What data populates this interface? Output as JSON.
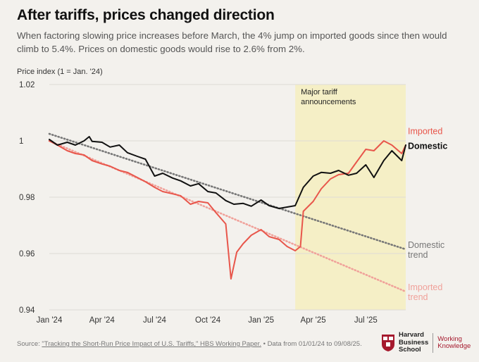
{
  "header": {
    "title": "After tariffs, prices changed direction",
    "subtitle": "When factoring slowing price increases before March, the 4% jump on imported goods since then would climb to 5.4%. Prices on domestic goods would rise to 2.6% from 2%."
  },
  "footer": {
    "source_prefix": "Source:",
    "source_link": "\"Tracking the Short-Run Price Impact of U.S. Tariffs,\" HBS Working Paper.",
    "source_suffix": "• Data from 01/01/24 to 09/08/25."
  },
  "logo": {
    "line1": "Harvard",
    "line2": "Business",
    "line3": "School",
    "wk1": "Working",
    "wk2": "Knowledge"
  },
  "colors": {
    "imported": "#e8564b",
    "domestic": "#111111",
    "domestic_trend": "#777777",
    "imported_trend": "#f0a19a",
    "shade": "#f5efc6"
  },
  "chart_data": {
    "type": "line",
    "ylabel": "Price index (1 = Jan. '24)",
    "ylim": [
      0.94,
      1.02
    ],
    "yticks": [
      0.94,
      0.96,
      0.98,
      1,
      1.02
    ],
    "ytick_labels": [
      "0.94",
      "0.96",
      "0.98",
      "1",
      "1.02"
    ],
    "xlim": [
      "2024-01-01",
      "2025-09-08"
    ],
    "xticks": [
      "2024-01-01",
      "2024-04-01",
      "2024-07-01",
      "2024-10-01",
      "2025-01-01",
      "2025-04-01",
      "2025-07-01"
    ],
    "xtick_labels": [
      "Jan '24",
      "Apr '24",
      "Jul '24",
      "Oct '24",
      "Jan '25",
      "Apr '25",
      "Jul '25"
    ],
    "shaded_region": {
      "start": "2025-03-01",
      "end": "2025-09-08",
      "label": [
        "Major tariff",
        "announcements"
      ]
    },
    "series": [
      {
        "name": "Domestic",
        "x": [
          "2024-01-01",
          "2024-01-15",
          "2024-02-01",
          "2024-02-15",
          "2024-03-01",
          "2024-03-10",
          "2024-03-15",
          "2024-04-01",
          "2024-04-15",
          "2024-05-01",
          "2024-05-15",
          "2024-06-01",
          "2024-06-15",
          "2024-07-01",
          "2024-07-15",
          "2024-08-01",
          "2024-08-15",
          "2024-09-01",
          "2024-09-15",
          "2024-10-01",
          "2024-10-15",
          "2024-11-01",
          "2024-11-15",
          "2024-12-01",
          "2024-12-15",
          "2025-01-01",
          "2025-01-15",
          "2025-02-01",
          "2025-02-15",
          "2025-03-01",
          "2025-03-15",
          "2025-04-01",
          "2025-04-15",
          "2025-05-01",
          "2025-05-15",
          "2025-06-01",
          "2025-06-15",
          "2025-07-01",
          "2025-07-15",
          "2025-08-01",
          "2025-08-15",
          "2025-09-01",
          "2025-09-08"
        ],
        "values": [
          1.0005,
          0.9985,
          0.9995,
          0.9985,
          1.0,
          1.0015,
          0.9998,
          0.9995,
          0.9978,
          0.9985,
          0.9958,
          0.9945,
          0.9935,
          0.9875,
          0.9885,
          0.9868,
          0.9858,
          0.984,
          0.9848,
          0.982,
          0.9815,
          0.9788,
          0.9775,
          0.9778,
          0.9768,
          0.979,
          0.977,
          0.976,
          0.9765,
          0.977,
          0.9835,
          0.9875,
          0.9888,
          0.9885,
          0.9895,
          0.9878,
          0.9885,
          0.9915,
          0.987,
          0.993,
          0.9965,
          0.993,
          0.9985
        ]
      },
      {
        "name": "Imported",
        "x": [
          "2024-01-01",
          "2024-01-15",
          "2024-02-01",
          "2024-02-15",
          "2024-03-01",
          "2024-03-15",
          "2024-04-01",
          "2024-04-15",
          "2024-05-01",
          "2024-05-15",
          "2024-06-01",
          "2024-06-15",
          "2024-07-01",
          "2024-07-15",
          "2024-08-01",
          "2024-08-15",
          "2024-09-01",
          "2024-09-15",
          "2024-10-01",
          "2024-10-15",
          "2024-11-01",
          "2024-11-10",
          "2024-11-20",
          "2024-12-01",
          "2024-12-15",
          "2025-01-01",
          "2025-01-15",
          "2025-02-01",
          "2025-02-15",
          "2025-03-01",
          "2025-03-10",
          "2025-03-15",
          "2025-04-01",
          "2025-04-15",
          "2025-05-01",
          "2025-05-15",
          "2025-06-01",
          "2025-06-15",
          "2025-07-01",
          "2025-07-15",
          "2025-08-01",
          "2025-08-15",
          "2025-09-01",
          "2025-09-08"
        ],
        "values": [
          1.0,
          0.9985,
          0.9965,
          0.9955,
          0.995,
          0.993,
          0.9918,
          0.991,
          0.9895,
          0.9888,
          0.987,
          0.9855,
          0.9835,
          0.982,
          0.9812,
          0.9805,
          0.9775,
          0.9785,
          0.978,
          0.9745,
          0.9705,
          0.951,
          0.9605,
          0.9635,
          0.9665,
          0.9685,
          0.966,
          0.965,
          0.9625,
          0.961,
          0.9625,
          0.975,
          0.9785,
          0.983,
          0.9865,
          0.988,
          0.9885,
          0.9925,
          0.997,
          0.9965,
          1.0,
          0.9985,
          0.9955,
          0.9985
        ]
      },
      {
        "name": "Domestic trend",
        "style": "dotted",
        "x": [
          "2024-01-01",
          "2025-09-08"
        ],
        "values": [
          1.0025,
          0.9615
        ]
      },
      {
        "name": "Imported trend",
        "style": "dotted",
        "x": [
          "2024-01-01",
          "2025-09-08"
        ],
        "values": [
          1.0,
          0.9465
        ]
      }
    ],
    "end_labels": [
      {
        "series": "Imported",
        "lines": [
          "Imported"
        ],
        "anchor_value": 1.0035
      },
      {
        "series": "Domestic",
        "lines": [
          "Domestic"
        ],
        "anchor_value": 0.9983
      },
      {
        "series": "Domestic trend",
        "lines": [
          "Domestic",
          "trend"
        ],
        "anchor_value": 0.9615
      },
      {
        "series": "Imported trend",
        "lines": [
          "Imported",
          "trend"
        ],
        "anchor_value": 0.9465
      }
    ]
  }
}
